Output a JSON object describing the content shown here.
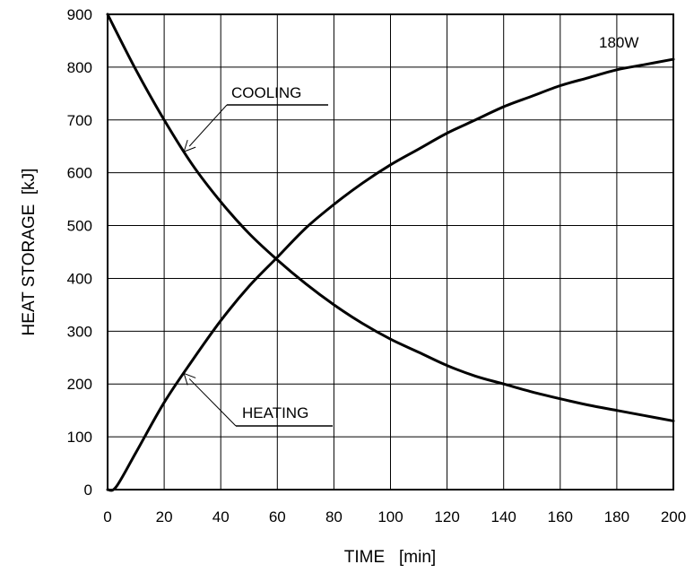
{
  "chart_data": {
    "type": "line",
    "title": "",
    "xlabel": "TIME   [min]",
    "ylabel": "HEAT STORAGE  [kJ]",
    "xlim": [
      0,
      200
    ],
    "ylim": [
      0,
      900
    ],
    "grid": true,
    "x_ticks": [
      0,
      20,
      40,
      60,
      80,
      100,
      120,
      140,
      160,
      180,
      200
    ],
    "y_ticks": [
      0,
      100,
      200,
      300,
      400,
      500,
      600,
      700,
      800,
      900
    ],
    "series": [
      {
        "name": "COOLING",
        "x": [
          0,
          10,
          20,
          30,
          40,
          50,
          60,
          70,
          80,
          90,
          100,
          110,
          120,
          130,
          140,
          150,
          160,
          170,
          180,
          190,
          200
        ],
        "y": [
          900,
          795,
          700,
          615,
          545,
          485,
          435,
          390,
          350,
          315,
          285,
          260,
          235,
          215,
          200,
          185,
          172,
          160,
          150,
          140,
          130
        ]
      },
      {
        "name": "HEATING",
        "x": [
          0,
          3,
          10,
          20,
          30,
          40,
          50,
          60,
          70,
          80,
          90,
          100,
          110,
          120,
          130,
          140,
          150,
          160,
          170,
          180,
          190,
          200
        ],
        "y": [
          0,
          5,
          70,
          165,
          245,
          320,
          385,
          440,
          495,
          540,
          580,
          615,
          645,
          675,
          700,
          725,
          745,
          765,
          780,
          795,
          805,
          815
        ]
      }
    ],
    "annotations": [
      {
        "text": "COOLING",
        "target_x": 27,
        "target_y": 640
      },
      {
        "text": "HEATING",
        "target_x": 27,
        "target_y": 220
      },
      {
        "text": "180W",
        "target_x": 200,
        "target_y": 815
      }
    ]
  }
}
